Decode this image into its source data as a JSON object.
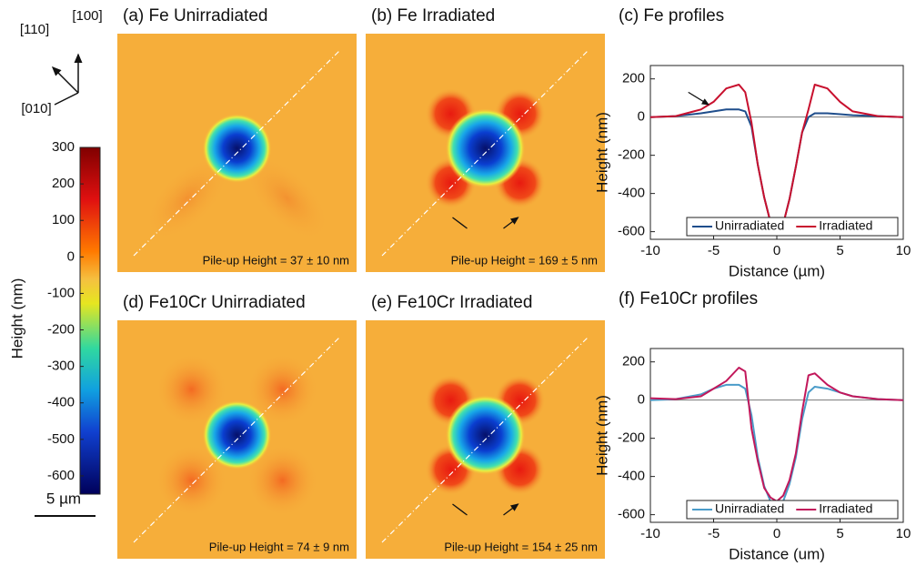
{
  "chart_data": [
    {
      "type": "image",
      "title": "(a) Fe Unirradiated",
      "annotation": "Pile-up Height = 37 ± 10 nm"
    },
    {
      "type": "image",
      "title": "(b) Fe Irradiated",
      "annotation": "Pile-up Height = 169 ± 5 nm"
    },
    {
      "type": "line",
      "title": "(c) Fe profiles",
      "xlabel": "Distance (µm)",
      "ylabel": "Height (nm)",
      "x": [
        -10,
        -8,
        -6,
        -5,
        -4,
        -3,
        -2.5,
        -2,
        -1.5,
        -1,
        -0.5,
        0,
        0.5,
        1,
        1.5,
        2,
        2.5,
        3,
        4,
        5,
        6,
        8,
        10
      ],
      "series": [
        {
          "name": "Unirradiated",
          "color": "#1f4e8c",
          "values": [
            0,
            5,
            20,
            30,
            40,
            40,
            30,
            -50,
            -250,
            -420,
            -550,
            -600,
            -560,
            -430,
            -260,
            -80,
            0,
            20,
            20,
            15,
            10,
            5,
            0
          ]
        },
        {
          "name": "Irradiated",
          "color": "#c8102e",
          "values": [
            0,
            5,
            40,
            80,
            150,
            170,
            130,
            -30,
            -250,
            -420,
            -550,
            -610,
            -560,
            -430,
            -260,
            -80,
            40,
            170,
            150,
            80,
            30,
            5,
            0
          ]
        }
      ],
      "xlim": [
        -10,
        10
      ],
      "xticks": [
        -10,
        -5,
        0,
        5,
        10
      ],
      "ylim": [
        -640,
        270
      ],
      "yticks": [
        200,
        0,
        -200,
        -400,
        -600
      ],
      "legend": "lower"
    },
    {
      "type": "image",
      "title": "(d) Fe10Cr Unirradiated",
      "annotation": "Pile-up Height = 74 ± 9 nm"
    },
    {
      "type": "image",
      "title": "(e) Fe10Cr Irradiated",
      "annotation": "Pile-up Height = 154 ± 25 nm"
    },
    {
      "type": "line",
      "title": "(f) Fe10Cr profiles",
      "xlabel": "Distance (um)",
      "ylabel": "Height (nm)",
      "x": [
        -10,
        -8,
        -6,
        -5,
        -4,
        -3,
        -2.5,
        -2,
        -1.5,
        -1,
        -0.5,
        0,
        0.5,
        1,
        1.5,
        2,
        2.5,
        3,
        4,
        5,
        6,
        8,
        10
      ],
      "series": [
        {
          "name": "Unirradiated",
          "color": "#4a9cc9",
          "values": [
            0,
            5,
            30,
            60,
            80,
            80,
            60,
            -80,
            -300,
            -450,
            -530,
            -560,
            -530,
            -440,
            -300,
            -100,
            40,
            70,
            60,
            40,
            20,
            5,
            0
          ]
        },
        {
          "name": "Irradiated",
          "color": "#c2185b",
          "values": [
            10,
            5,
            20,
            60,
            100,
            170,
            150,
            -150,
            -320,
            -460,
            -510,
            -530,
            -500,
            -420,
            -280,
            -60,
            130,
            140,
            80,
            40,
            20,
            5,
            0
          ]
        }
      ],
      "xlim": [
        -10,
        10
      ],
      "xticks": [
        -10,
        -5,
        0,
        5,
        10
      ],
      "ylim": [
        -640,
        270
      ],
      "yticks": [
        200,
        0,
        -200,
        -400,
        -600
      ],
      "legend": "lower"
    },
    {
      "type": "colorbar",
      "ylabel": "Height (nm)",
      "ylim": [
        -650,
        300
      ],
      "yticks": [
        300,
        200,
        100,
        0,
        -100,
        -200,
        -300,
        -400,
        -500,
        -600
      ],
      "scale_bar": "5 µm",
      "directions": [
        "[110]",
        "[100]",
        "[010]"
      ]
    }
  ]
}
